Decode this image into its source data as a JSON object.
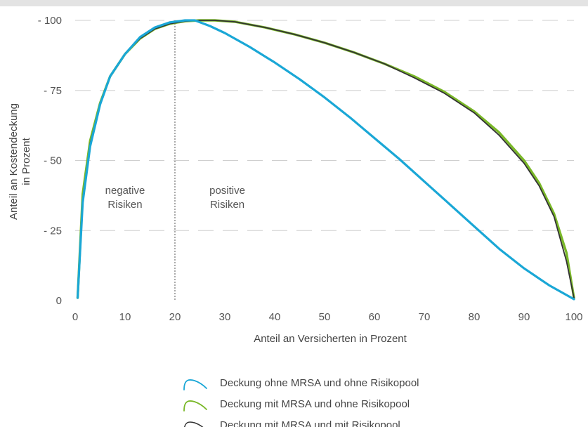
{
  "chart_data": {
    "type": "line",
    "title": "",
    "xlabel": "Anteil an Versicherten in Prozent",
    "ylabel_line1": "Anteil an Kostendeckung",
    "ylabel_line2": "in Prozent",
    "xlim": [
      0,
      100
    ],
    "ylim": [
      0,
      100
    ],
    "x_ticks": [
      {
        "value": 0,
        "label": "0"
      },
      {
        "value": 10,
        "label": "10"
      },
      {
        "value": 20,
        "label": "20"
      },
      {
        "value": 30,
        "label": "30"
      },
      {
        "value": 40,
        "label": "40"
      },
      {
        "value": 50,
        "label": "50"
      },
      {
        "value": 60,
        "label": "60"
      },
      {
        "value": 70,
        "label": "70"
      },
      {
        "value": 80,
        "label": "80"
      },
      {
        "value": 90,
        "label": "90"
      },
      {
        "value": 100,
        "label": "100"
      }
    ],
    "y_ticks": [
      {
        "value": 0,
        "label": "0"
      },
      {
        "value": 25,
        "label": "- 25"
      },
      {
        "value": 50,
        "label": "- 50"
      },
      {
        "value": 75,
        "label": "- 75"
      },
      {
        "value": 100,
        "label": "- 100"
      }
    ],
    "grid": true,
    "reference_line_x": 20,
    "region_labels": [
      {
        "lines": [
          "negative",
          "Risiken"
        ]
      },
      {
        "lines": [
          "positive",
          "Risiken"
        ]
      }
    ],
    "legend_position": "bottom-center",
    "series": [
      {
        "name": "Deckung ohne MRSA und ohne Risikopool",
        "color": "#1aa7d6",
        "points": [
          [
            0.5,
            1
          ],
          [
            1.5,
            35
          ],
          [
            3,
            55
          ],
          [
            5,
            70
          ],
          [
            7,
            80
          ],
          [
            10,
            88
          ],
          [
            13,
            94
          ],
          [
            16,
            97.5
          ],
          [
            19,
            99.3
          ],
          [
            22,
            100
          ],
          [
            24,
            100
          ],
          [
            27,
            98
          ],
          [
            30,
            95.5
          ],
          [
            35,
            90.5
          ],
          [
            40,
            85
          ],
          [
            45,
            79
          ],
          [
            50,
            72.5
          ],
          [
            55,
            65.5
          ],
          [
            60,
            58
          ],
          [
            65,
            50.5
          ],
          [
            70,
            42.5
          ],
          [
            75,
            34.5
          ],
          [
            80,
            26.5
          ],
          [
            85,
            18.5
          ],
          [
            90,
            11.5
          ],
          [
            95,
            5.5
          ],
          [
            100,
            0.5
          ]
        ]
      },
      {
        "name": "Deckung mit MRSA und ohne Risikopool",
        "color": "#7ab828",
        "points": [
          [
            0.5,
            1
          ],
          [
            1.5,
            38
          ],
          [
            3,
            57
          ],
          [
            5,
            70.5
          ],
          [
            7,
            80
          ],
          [
            10,
            88
          ],
          [
            13,
            93.5
          ],
          [
            16,
            97
          ],
          [
            19,
            98.8
          ],
          [
            22,
            99.7
          ],
          [
            25,
            100
          ],
          [
            28,
            100
          ],
          [
            32,
            99.5
          ],
          [
            38,
            97.5
          ],
          [
            44,
            95
          ],
          [
            50,
            92
          ],
          [
            56,
            88.5
          ],
          [
            62,
            84.5
          ],
          [
            68,
            80
          ],
          [
            74,
            74.5
          ],
          [
            80,
            67.5
          ],
          [
            85,
            60
          ],
          [
            90,
            50
          ],
          [
            93,
            42
          ],
          [
            96,
            31
          ],
          [
            98.5,
            17
          ],
          [
            100,
            1
          ]
        ]
      },
      {
        "name": "Deckung mit MRSA und mit Risikopool",
        "color": "#333333",
        "points": [
          [
            0.5,
            1
          ],
          [
            1.5,
            36
          ],
          [
            3,
            56
          ],
          [
            5,
            70
          ],
          [
            7,
            80
          ],
          [
            10,
            88
          ],
          [
            13,
            93.5
          ],
          [
            16,
            97
          ],
          [
            19,
            98.8
          ],
          [
            22,
            99.7
          ],
          [
            25,
            100
          ],
          [
            28,
            100
          ],
          [
            32,
            99.5
          ],
          [
            38,
            97.5
          ],
          [
            44,
            95
          ],
          [
            50,
            92
          ],
          [
            56,
            88.5
          ],
          [
            62,
            84.5
          ],
          [
            68,
            79.5
          ],
          [
            74,
            74
          ],
          [
            80,
            67
          ],
          [
            85,
            59
          ],
          [
            90,
            49
          ],
          [
            93,
            41
          ],
          [
            96,
            30
          ],
          [
            98.5,
            14
          ],
          [
            100,
            1
          ]
        ]
      }
    ]
  }
}
